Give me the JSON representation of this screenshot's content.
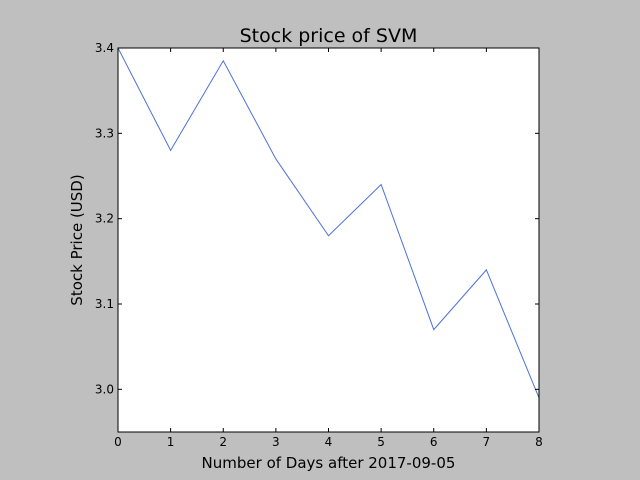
{
  "chart_data": {
    "type": "line",
    "title": "Stock price of SVM",
    "xlabel": "Number of Days after 2017-09-05",
    "ylabel": "Stock Price (USD)",
    "x": [
      0,
      1,
      2,
      3,
      4,
      5,
      6,
      7,
      8
    ],
    "series": [
      {
        "values": [
          3.4,
          3.28,
          3.385,
          3.27,
          3.18,
          3.24,
          3.07,
          3.14,
          2.99
        ]
      }
    ],
    "xlim": [
      0,
      8
    ],
    "ylim": [
      2.95,
      3.4
    ],
    "xticks": [
      "0",
      "1",
      "2",
      "3",
      "4",
      "5",
      "6",
      "7",
      "8"
    ],
    "yticks": [
      "3.0",
      "3.1",
      "3.2",
      "3.3",
      "3.4"
    ],
    "ytick_values": [
      3.0,
      3.1,
      3.2,
      3.3,
      3.4
    ],
    "grid": false,
    "colors": {
      "line": "#4c72d9",
      "figure_bg": "#bfbfbf",
      "axes_bg": "#ffffff"
    }
  }
}
